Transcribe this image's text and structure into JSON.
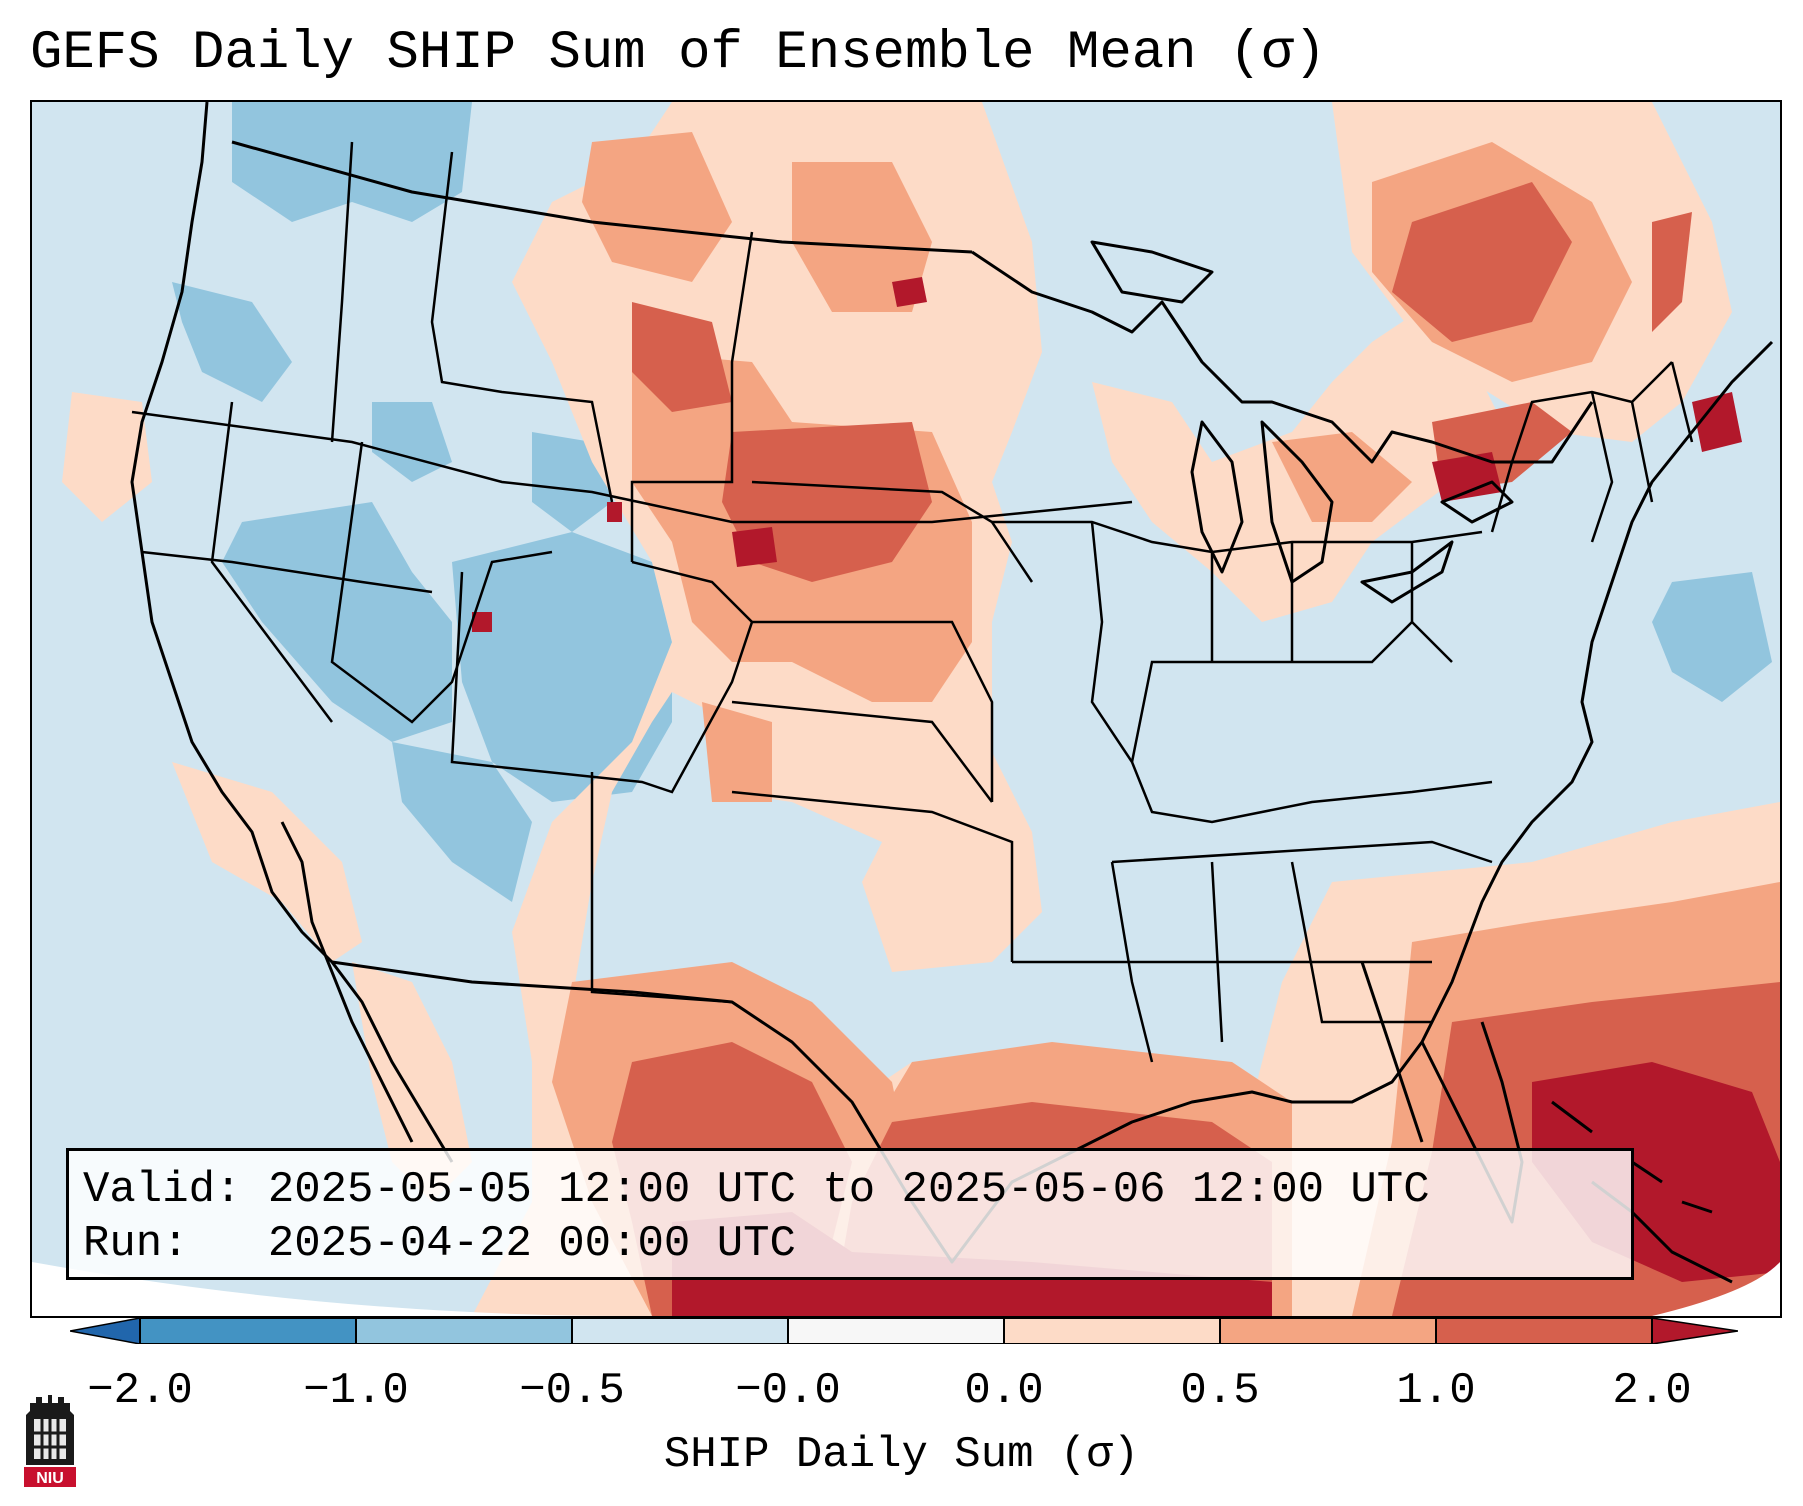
{
  "title": "GEFS Daily SHIP Sum of Ensemble Mean (σ)",
  "info": {
    "valid": "Valid: 2025-05-05 12:00 UTC to 2025-05-06 12:00 UTC",
    "run": "Run:   2025-04-22 00:00 UTC"
  },
  "colorbar": {
    "label": "SHIP Daily Sum (σ)",
    "ticks": [
      "−2.0",
      "−1.0",
      "−0.5",
      "−0.0",
      "0.0",
      "0.5",
      "1.0",
      "2.0"
    ],
    "colors": [
      "#2166ac",
      "#4393c3",
      "#92c5de",
      "#d1e5f0",
      "#f7f7f7",
      "#fddbc7",
      "#f4a582",
      "#d6604d",
      "#b2182b"
    ],
    "extend": "both"
  },
  "map": {
    "region": "Continental United States",
    "field": "SHIP daily sum anomaly (ensemble mean)",
    "background_color": "#d1e5f0"
  },
  "logo": {
    "text": "NIU"
  }
}
